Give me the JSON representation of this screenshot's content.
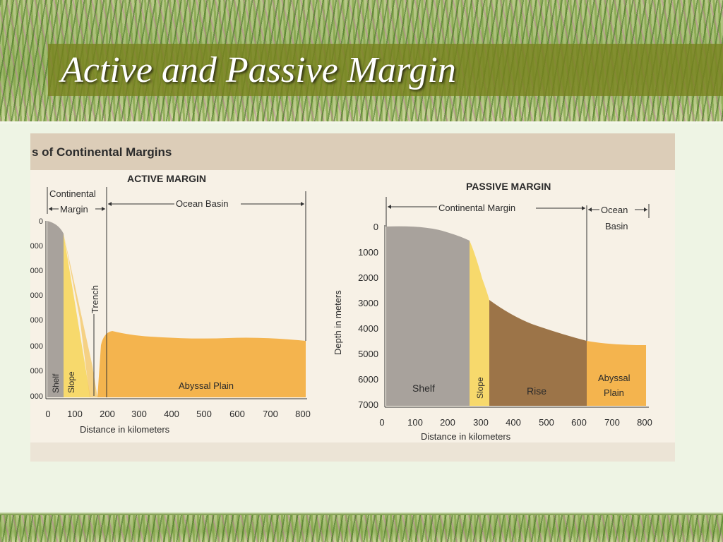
{
  "slide": {
    "title": "Active and Passive Margin"
  },
  "figure": {
    "header": "s of Continental Margins",
    "active": {
      "title": "ACTIVE MARGIN",
      "continental_margin_label_1": "Continental",
      "continental_margin_label_2": "Margin",
      "ocean_basin_label": "Ocean Basin",
      "trench_label": "Trench",
      "shelf_label": "Shelf",
      "slope_label": "Slope",
      "abyssal_label": "Abyssal Plain",
      "y_ticks": [
        "0",
        "000",
        "000",
        "000",
        "000",
        "000",
        "000",
        "000"
      ],
      "x_ticks": [
        "0",
        "100",
        "200",
        "300",
        "400",
        "500",
        "600",
        "700",
        "800"
      ],
      "x_axis_label": "Distance in kilometers"
    },
    "passive": {
      "title": "PASSIVE MARGIN",
      "continental_margin_label": "Continental Margin",
      "ocean_basin_label_1": "Ocean",
      "ocean_basin_label_2": "Basin",
      "y_axis_label": "Depth in meters",
      "shelf_label": "Shelf",
      "slope_label": "Slope",
      "rise_label": "Rise",
      "abyssal_label_1": "Abyssal",
      "abyssal_label_2": "Plain",
      "y_ticks": [
        "0",
        "1000",
        "2000",
        "3000",
        "4000",
        "5000",
        "6000",
        "7000"
      ],
      "x_ticks": [
        "0",
        "100",
        "200",
        "300",
        "400",
        "500",
        "600",
        "700",
        "800"
      ],
      "x_axis_label": "Distance in kilometers"
    },
    "colors": {
      "shelf": "#a8a29c",
      "slope": "#f7d96c",
      "rise": "#9c7448",
      "abyssal": "#f4b44e",
      "page": "#f7f1e6",
      "band": "#dccdb8"
    }
  }
}
